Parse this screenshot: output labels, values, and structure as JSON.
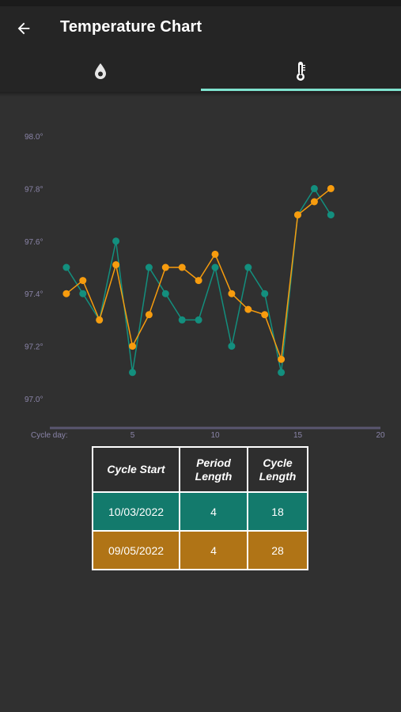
{
  "appbar": {
    "title": "Temperature Chart",
    "back_icon": "arrow-left-icon"
  },
  "tabs": [
    {
      "name": "period",
      "icon": "drop-icon",
      "active": false
    },
    {
      "name": "temperature",
      "icon": "thermometer-icon",
      "active": true
    }
  ],
  "colors": {
    "background": "#303030",
    "appbar": "#252525",
    "tab_indicator": "#7fe3cf",
    "series_a": "#138f7e",
    "series_b": "#f79c0e"
  },
  "chart_data": {
    "type": "line",
    "x_axis_label": "Cycle day:",
    "x_ticks": [
      "5",
      "10",
      "15",
      "20"
    ],
    "x_tick_values": [
      5,
      10,
      15,
      20
    ],
    "y_ticks": [
      "98.0°",
      "97.8°",
      "97.6°",
      "97.4°",
      "97.2°",
      "97.0°"
    ],
    "y_tick_values": [
      98.0,
      97.8,
      97.6,
      97.4,
      97.2,
      97.0
    ],
    "xlim": [
      0,
      20
    ],
    "ylim": [
      96.95,
      98.05
    ],
    "grid": false,
    "series": [
      {
        "color": "#138f7e",
        "points": [
          [
            1,
            97.5
          ],
          [
            2,
            97.4
          ],
          [
            3,
            97.3
          ],
          [
            4,
            97.6
          ],
          [
            5,
            97.1
          ],
          [
            6,
            97.5
          ],
          [
            7,
            97.4
          ],
          [
            8,
            97.3
          ],
          [
            9,
            97.3
          ],
          [
            10,
            97.5
          ],
          [
            11,
            97.2
          ],
          [
            12,
            97.5
          ],
          [
            13,
            97.4
          ],
          [
            14,
            97.1
          ],
          [
            15,
            97.7
          ],
          [
            16,
            97.8
          ],
          [
            17,
            97.7
          ]
        ]
      },
      {
        "color": "#f79c0e",
        "points": [
          [
            1,
            97.4
          ],
          [
            2,
            97.45
          ],
          [
            3,
            97.3
          ],
          [
            4,
            97.51
          ],
          [
            5,
            97.2
          ],
          [
            6,
            97.32
          ],
          [
            7,
            97.5
          ],
          [
            8,
            97.5
          ],
          [
            9,
            97.45
          ],
          [
            10,
            97.55
          ],
          [
            11,
            97.4
          ],
          [
            12,
            97.34
          ],
          [
            13,
            97.32
          ],
          [
            14,
            97.15
          ],
          [
            15,
            97.7
          ],
          [
            16,
            97.75
          ],
          [
            17,
            97.8
          ]
        ]
      }
    ]
  },
  "cycle_table": {
    "headers": [
      "Cycle Start",
      "Period\nLength",
      "Cycle\nLength"
    ],
    "header_lines": [
      [
        "Cycle Start"
      ],
      [
        "Period",
        "Length"
      ],
      [
        "Cycle",
        "Length"
      ]
    ],
    "rows": [
      {
        "start": "10/03/2022",
        "period_length": "4",
        "cycle_length": "18"
      },
      {
        "start": "09/05/2022",
        "period_length": "4",
        "cycle_length": "28"
      }
    ]
  }
}
